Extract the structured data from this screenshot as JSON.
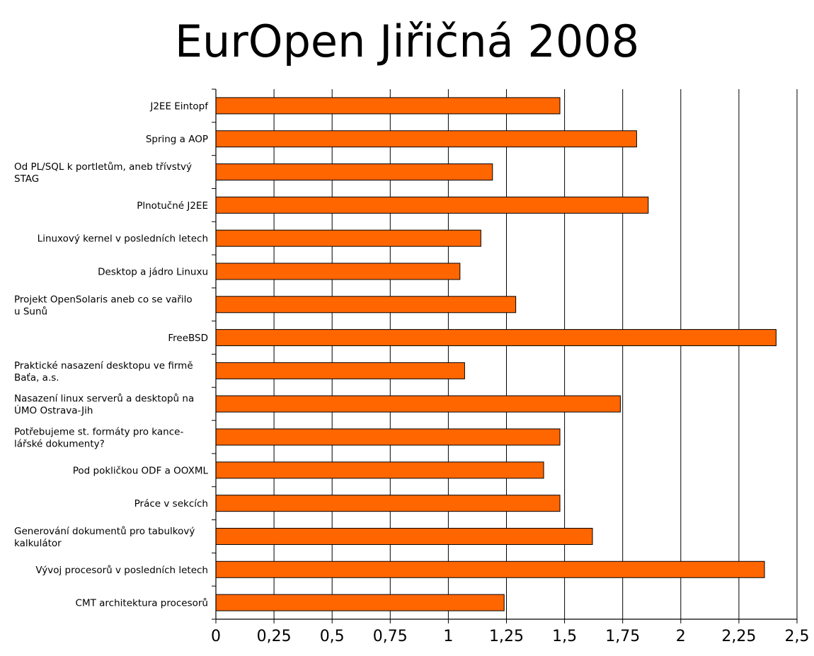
{
  "chart_data": {
    "type": "bar",
    "orientation": "horizontal",
    "title": "EurOpen Jiřičná 2008",
    "xlabel": "",
    "ylabel": "",
    "xlim": [
      0,
      2.5
    ],
    "x_ticks": [
      "0",
      "0,25",
      "0,5",
      "0,75",
      "1",
      "1,25",
      "1,5",
      "1,75",
      "2",
      "2,25",
      "2,5"
    ],
    "grid": "vertical",
    "bar_color": "#ff6600",
    "categories": [
      "J2EE Eintopf",
      "Spring a AOP",
      "Od PL/SQL k portletům, aneb třívstvý STAG",
      "Plnotučné J2EE",
      "Linuxový kernel v posledních letech",
      "Desktop a jádro Linuxu",
      "Projekt OpenSolaris aneb co se vařilo u Sunů",
      "FreeBSD",
      "Praktické nasazení desktopu ve firmě Baťa, a.s.",
      "Nasazení linux serverů a desktopů na ÚMO Ostrava-Jih",
      "Potřebujeme st. formáty pro kancelářské dokumenty?",
      "Pod pokličkou ODF a OOXML",
      "Práce v sekcích",
      "Generování dokumentů pro tabulkový kalkulátor",
      "Vývoj procesorů v posledních letech",
      "CMT architektura procesorů"
    ],
    "category_lines": [
      [
        "J2EE Eintopf"
      ],
      [
        "Spring a AOP"
      ],
      [
        "Od PL/SQL k portletům, aneb třívstvý",
        "STAG"
      ],
      [
        "Plnotučné J2EE"
      ],
      [
        "Linuxový kernel v posledních letech"
      ],
      [
        "Desktop a jádro Linuxu"
      ],
      [
        "Projekt OpenSolaris aneb co se vařilo",
        "u Sunů"
      ],
      [
        "FreeBSD"
      ],
      [
        "Praktické nasazení desktopu ve firmě",
        "Baťa, a.s."
      ],
      [
        "Nasazení linux serverů a desktopů na",
        "ÚMO Ostrava-Jih"
      ],
      [
        "Potřebujeme st. formáty pro kance-",
        "lářské dokumenty?"
      ],
      [
        "Pod pokličkou ODF a OOXML"
      ],
      [
        "Práce v sekcích"
      ],
      [
        "Generování dokumentů pro tabulkový",
        "kalkulátor"
      ],
      [
        "Vývoj procesorů v posledních letech"
      ],
      [
        "CMT architektura procesorů"
      ]
    ],
    "values": [
      1.48,
      1.81,
      1.19,
      1.86,
      1.14,
      1.05,
      1.29,
      2.41,
      1.07,
      1.74,
      1.48,
      1.41,
      1.48,
      1.62,
      2.36,
      1.24
    ]
  }
}
